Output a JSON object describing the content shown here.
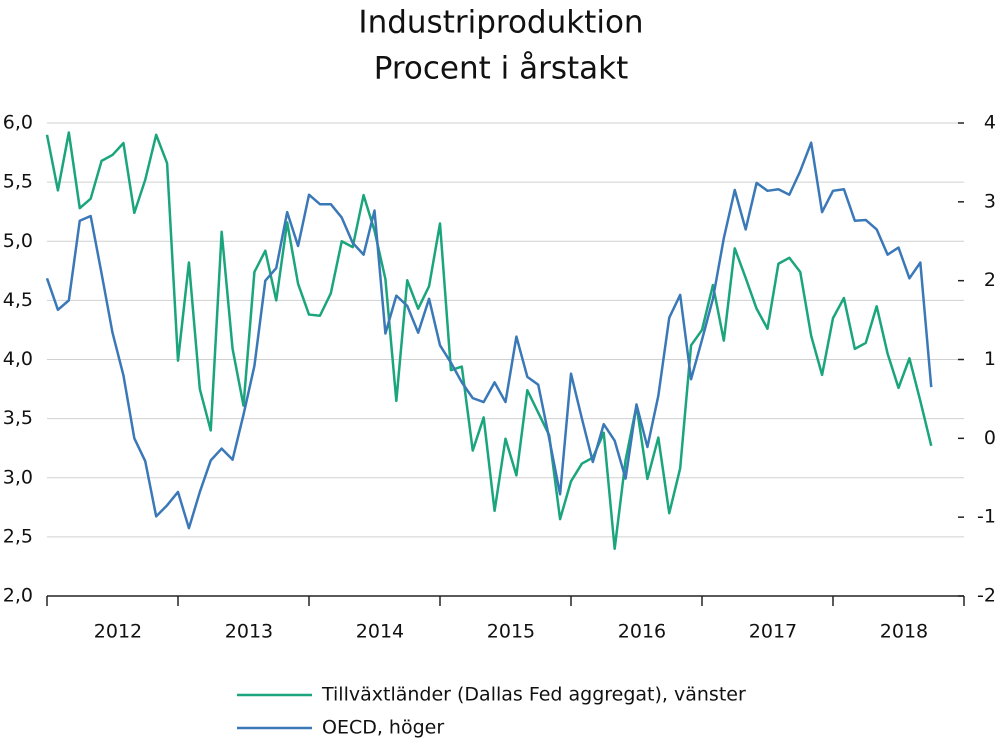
{
  "chart_data": {
    "type": "line",
    "title": "Industriproduktion",
    "subtitle": "Procent i årstakt",
    "categories": [
      null,
      null,
      null,
      null,
      null,
      null,
      "2012",
      null,
      null,
      null,
      null,
      null,
      null,
      null,
      null,
      null,
      null,
      null,
      "2013",
      null,
      null,
      null,
      null,
      null,
      null,
      null,
      null,
      null,
      null,
      null,
      "2014",
      null,
      null,
      null,
      null,
      null,
      null,
      null,
      null,
      null,
      null,
      null,
      "2015",
      null,
      null,
      null,
      null,
      null,
      null,
      null,
      null,
      null,
      null,
      null,
      "2016",
      null,
      null,
      null,
      null,
      null,
      null,
      null,
      null,
      null,
      null,
      null,
      "2017",
      null,
      null,
      null,
      null,
      null,
      null,
      null,
      null,
      null,
      null,
      null,
      "2018",
      null,
      null,
      null
    ],
    "series": [
      {
        "name": "Tillväxtländer (Dallas Fed aggregat), vänster",
        "color": "#1ba57c",
        "axis": "y",
        "values": [
          5.9,
          5.43,
          5.92,
          5.28,
          5.36,
          5.68,
          5.73,
          5.83,
          5.24,
          5.52,
          5.9,
          5.66,
          3.99,
          4.82,
          3.75,
          3.4,
          5.08,
          4.09,
          3.61,
          4.74,
          4.92,
          4.5,
          5.16,
          4.64,
          4.38,
          4.37,
          4.56,
          5.0,
          4.95,
          5.39,
          5.09,
          4.68,
          3.65,
          4.67,
          4.43,
          4.62,
          5.15,
          3.91,
          3.94,
          3.23,
          3.51,
          2.72,
          3.33,
          3.02,
          3.74,
          3.55,
          3.36,
          2.65,
          2.97,
          3.12,
          3.17,
          3.38,
          2.4,
          3.15,
          3.61,
          2.99,
          3.34,
          2.7,
          3.08,
          4.12,
          4.25,
          4.63,
          4.16,
          4.94,
          4.69,
          4.43,
          4.26,
          4.81,
          4.86,
          4.74,
          4.2,
          3.87,
          4.35,
          4.52,
          4.09,
          4.14,
          4.45,
          4.05,
          3.76,
          4.01,
          3.65,
          3.27
        ]
      },
      {
        "name": "OECD, höger",
        "color": "#3a78b7",
        "axis": "y2",
        "values": [
          2.03,
          1.63,
          1.75,
          2.76,
          2.82,
          2.09,
          1.34,
          0.8,
          0,
          -0.29,
          -0.99,
          -0.85,
          -0.68,
          -1.14,
          -0.68,
          -0.28,
          -0.13,
          -0.27,
          0.3,
          0.92,
          2.0,
          2.16,
          2.87,
          2.44,
          3.09,
          2.97,
          2.97,
          2.8,
          2.48,
          2.33,
          2.89,
          1.33,
          1.81,
          1.68,
          1.34,
          1.77,
          1.18,
          0.96,
          0.71,
          0.51,
          0.46,
          0.71,
          0.46,
          1.29,
          0.78,
          0.68,
          0,
          -0.71,
          0.82,
          0.25,
          -0.3,
          0.18,
          -0.03,
          -0.51,
          0.43,
          -0.11,
          0.54,
          1.53,
          1.82,
          0.75,
          1.25,
          1.77,
          2.54,
          3.15,
          2.65,
          3.24,
          3.14,
          3.16,
          3.09,
          3.39,
          3.75,
          2.87,
          3.14,
          3.16,
          2.76,
          2.77,
          2.65,
          2.33,
          2.42,
          2.03,
          2.23,
          0.65
        ]
      }
    ],
    "ylim": [
      2,
      6
    ],
    "yticks": [
      {
        "value": 2,
        "label": "2,0"
      },
      {
        "value": 2.5,
        "label": "2,5"
      },
      {
        "value": 3,
        "label": "3,0"
      },
      {
        "value": 3.5,
        "label": "3,5"
      },
      {
        "value": 4,
        "label": "4,0"
      },
      {
        "value": 4.5,
        "label": "4,5"
      },
      {
        "value": 5,
        "label": "5,0"
      },
      {
        "value": 5.5,
        "label": "5,5"
      },
      {
        "value": 6,
        "label": "6,0"
      }
    ],
    "y2lim": [
      -2,
      4
    ],
    "y2ticks": [
      -2,
      -1,
      0,
      1,
      2,
      3,
      4
    ],
    "grid": true,
    "legend": "bottom"
  }
}
